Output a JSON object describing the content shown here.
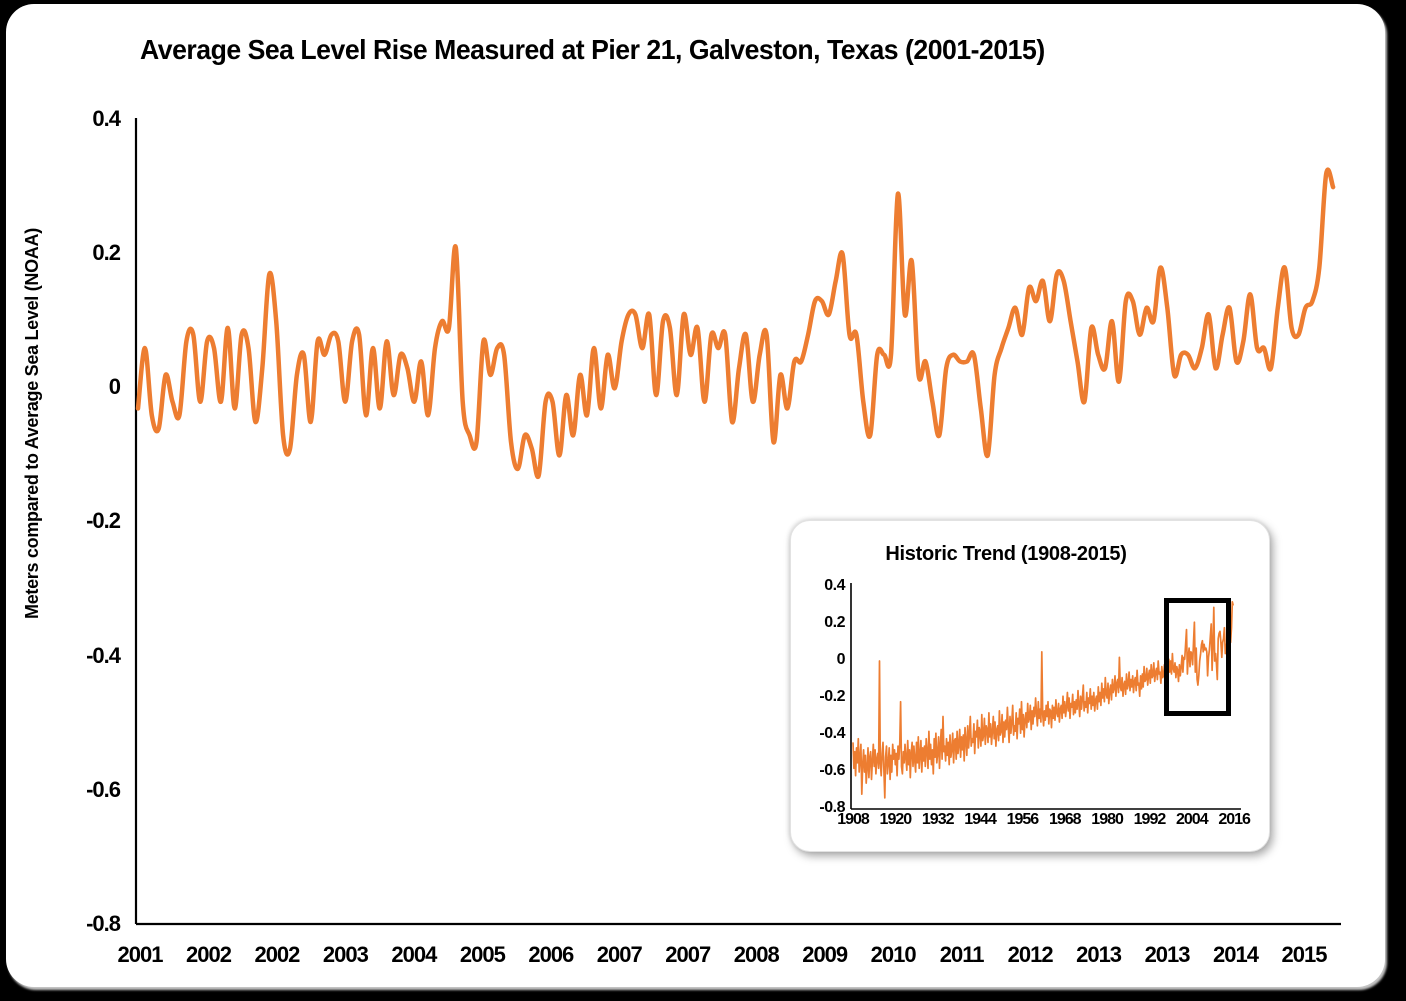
{
  "figure": {
    "title": "Average Sea Level Rise Measured at Pier 21, Galveston, Texas (2001-2015)",
    "y_axis_title": "Meters compared to Average Sea Level (NOAA)"
  },
  "colors": {
    "line": "#ED7D31",
    "axis": "#000000",
    "card_background": "#FFFFFF",
    "frame_background": "#000000",
    "highlight_box": "#000000"
  },
  "chart_data": [
    {
      "id": "main",
      "type": "line",
      "title": "Average Sea Level Rise Measured at Pier 21, Galveston, Texas (2001-2015)",
      "xlabel": "",
      "ylabel": "Meters compared to Average Sea Level (NOAA)",
      "ylim": [
        -0.8,
        0.4
      ],
      "x_unit": "month",
      "x_start": "2001-01",
      "x_end": "2015-06",
      "grid": false,
      "legend": "none",
      "smoothed": true,
      "y_tick_labels": [
        "0.4",
        "0.2",
        "0",
        "-0.2",
        "-0.4",
        "-0.6",
        "-0.8"
      ],
      "x_tick_labels": [
        "2001",
        "2002",
        "2002",
        "2003",
        "2004",
        "2005",
        "2006",
        "2007",
        "2007",
        "2008",
        "2009",
        "2010",
        "2011",
        "2012",
        "2013",
        "2013",
        "2014",
        "2015"
      ],
      "values": [
        -0.03,
        0.06,
        -0.04,
        -0.06,
        0.02,
        -0.02,
        -0.04,
        0.07,
        0.08,
        -0.02,
        0.07,
        0.06,
        -0.02,
        0.09,
        -0.03,
        0.08,
        0.06,
        -0.05,
        0.03,
        0.17,
        0.1,
        -0.07,
        -0.09,
        0.02,
        0.05,
        -0.05,
        0.07,
        0.05,
        0.08,
        0.07,
        -0.02,
        0.07,
        0.08,
        -0.04,
        0.06,
        -0.03,
        0.07,
        -0.01,
        0.05,
        0.03,
        -0.02,
        0.04,
        -0.04,
        0.06,
        0.1,
        0.09,
        0.21,
        -0.02,
        -0.07,
        -0.08,
        0.07,
        0.02,
        0.06,
        0.05,
        -0.08,
        -0.12,
        -0.07,
        -0.09,
        -0.13,
        -0.02,
        -0.02,
        -0.1,
        -0.01,
        -0.07,
        0.02,
        -0.04,
        0.06,
        -0.03,
        0.05,
        0.0,
        0.07,
        0.11,
        0.11,
        0.06,
        0.11,
        -0.01,
        0.1,
        0.09,
        -0.01,
        0.11,
        0.05,
        0.09,
        -0.02,
        0.08,
        0.06,
        0.08,
        -0.05,
        0.03,
        0.08,
        -0.02,
        0.05,
        0.08,
        -0.08,
        0.02,
        -0.03,
        0.04,
        0.04,
        0.08,
        0.13,
        0.13,
        0.11,
        0.16,
        0.2,
        0.08,
        0.08,
        -0.02,
        -0.07,
        0.05,
        0.05,
        0.05,
        0.29,
        0.11,
        0.19,
        0.02,
        0.04,
        -0.02,
        -0.07,
        0.03,
        0.05,
        0.04,
        0.04,
        0.05,
        -0.03,
        -0.1,
        0.02,
        0.06,
        0.09,
        0.12,
        0.08,
        0.15,
        0.13,
        0.16,
        0.1,
        0.17,
        0.16,
        0.1,
        0.04,
        -0.02,
        0.09,
        0.05,
        0.03,
        0.1,
        0.01,
        0.13,
        0.13,
        0.08,
        0.12,
        0.1,
        0.18,
        0.12,
        0.02,
        0.05,
        0.05,
        0.03,
        0.06,
        0.11,
        0.03,
        0.08,
        0.12,
        0.04,
        0.07,
        0.14,
        0.06,
        0.06,
        0.03,
        0.12,
        0.18,
        0.09,
        0.08,
        0.12,
        0.13,
        0.18,
        0.32,
        0.3
      ]
    },
    {
      "id": "inset",
      "type": "line",
      "title": "Historic Trend (1908-2015)",
      "xlabel": "",
      "ylabel": "",
      "ylim": [
        -0.8,
        0.4
      ],
      "x_unit": "quarter",
      "x_start": 1908,
      "x_end": 2015.75,
      "grid": false,
      "legend": "none",
      "smoothed": false,
      "y_tick_labels": [
        "0.4",
        "0.2",
        "0",
        "-0.2",
        "-0.4",
        "-0.6",
        "-0.8"
      ],
      "x_tick_labels": [
        "1908",
        "1920",
        "1932",
        "1944",
        "1956",
        "1968",
        "1980",
        "1992",
        "2004",
        "2016"
      ],
      "highlight_box": {
        "x_range": [
          1996,
          2015
        ],
        "y_range": [
          -0.3,
          0.34
        ]
      },
      "values": [
        -0.44,
        -0.58,
        -0.49,
        -0.62,
        -0.47,
        -0.55,
        -0.42,
        -0.6,
        -0.52,
        -0.45,
        -0.72,
        -0.56,
        -0.48,
        -0.6,
        -0.51,
        -0.66,
        -0.58,
        -0.47,
        -0.63,
        -0.52,
        -0.49,
        -0.64,
        -0.54,
        -0.45,
        -0.57,
        -0.48,
        -0.61,
        -0.53,
        -0.5,
        -0.58,
        0.0,
        -0.55,
        -0.62,
        -0.5,
        -0.44,
        -0.59,
        -0.74,
        -0.52,
        -0.46,
        -0.61,
        -0.55,
        -0.47,
        -0.64,
        -0.51,
        -0.6,
        -0.45,
        -0.53,
        -0.48,
        -0.56,
        -0.5,
        -0.62,
        -0.46,
        -0.53,
        -0.44,
        -0.22,
        -0.57,
        -0.61,
        -0.49,
        -0.55,
        -0.45,
        -0.52,
        -0.59,
        -0.43,
        -0.56,
        -0.48,
        -0.63,
        -0.5,
        -0.44,
        -0.57,
        -0.46,
        -0.54,
        -0.6,
        -0.44,
        -0.55,
        -0.41,
        -0.58,
        -0.51,
        -0.43,
        -0.6,
        -0.47,
        -0.54,
        -0.46,
        -0.57,
        -0.42,
        -0.49,
        -0.58,
        -0.38,
        -0.53,
        -0.45,
        -0.56,
        -0.48,
        -0.61,
        -0.42,
        -0.52,
        -0.39,
        -0.55,
        -0.5,
        -0.41,
        -0.58,
        -0.46,
        -0.37,
        -0.53,
        -0.3,
        -0.49,
        -0.46,
        -0.54,
        -0.42,
        -0.51,
        -0.44,
        -0.56,
        -0.4,
        -0.52,
        -0.48,
        -0.39,
        -0.55,
        -0.43,
        -0.42,
        -0.53,
        -0.38,
        -0.5,
        -0.45,
        -0.37,
        -0.52,
        -0.41,
        -0.48,
        -0.4,
        -0.54,
        -0.36,
        -0.43,
        -0.51,
        -0.35,
        -0.47,
        -0.39,
        -0.3,
        -0.46,
        -0.42,
        -0.44,
        -0.34,
        -0.5,
        -0.38,
        -0.41,
        -0.32,
        -0.47,
        -0.36,
        -0.38,
        -0.46,
        -0.29,
        -0.43,
        -0.4,
        -0.31,
        -0.45,
        -0.35,
        -0.37,
        -0.44,
        -0.28,
        -0.41,
        -0.34,
        -0.45,
        -0.38,
        -0.3,
        -0.42,
        -0.33,
        -0.46,
        -0.37,
        -0.35,
        -0.43,
        -0.27,
        -0.4,
        -0.38,
        -0.29,
        -0.44,
        -0.33,
        -0.41,
        -0.32,
        -0.37,
        -0.25,
        -0.36,
        -0.44,
        -0.3,
        -0.39,
        -0.33,
        -0.24,
        -0.4,
        -0.35,
        -0.38,
        -0.28,
        -0.42,
        -0.31,
        -0.34,
        -0.26,
        -0.39,
        -0.22,
        -0.37,
        -0.29,
        -0.41,
        -0.32,
        -0.28,
        -0.36,
        -0.23,
        -0.33,
        -0.31,
        -0.24,
        -0.37,
        -0.27,
        -0.34,
        -0.25,
        -0.3,
        -0.2,
        -0.28,
        -0.35,
        -0.22,
        -0.31,
        -0.26,
        -0.33,
        0.05,
        -0.29,
        -0.35,
        -0.27,
        -0.32,
        -0.24,
        -0.3,
        -0.22,
        -0.34,
        -0.26,
        -0.27,
        -0.36,
        -0.24,
        -0.31,
        -0.25,
        -0.32,
        -0.21,
        -0.28,
        -0.3,
        -0.23,
        -0.33,
        -0.26,
        -0.24,
        -0.31,
        -0.19,
        -0.28,
        -0.22,
        -0.3,
        -0.25,
        -0.17,
        -0.27,
        -0.2,
        -0.31,
        -0.23,
        -0.25,
        -0.18,
        -0.29,
        -0.22,
        -0.28,
        -0.21,
        -0.26,
        -0.16,
        -0.23,
        -0.3,
        -0.19,
        -0.26,
        -0.2,
        -0.13,
        -0.27,
        -0.22,
        -0.25,
        -0.17,
        -0.28,
        -0.2,
        -0.23,
        -0.15,
        -0.26,
        -0.19,
        -0.24,
        -0.17,
        -0.27,
        -0.21,
        -0.19,
        -0.26,
        -0.14,
        -0.22,
        -0.17,
        -0.24,
        -0.12,
        -0.2,
        -0.15,
        -0.22,
        -0.09,
        -0.18,
        -0.2,
        -0.12,
        -0.23,
        -0.16,
        -0.13,
        -0.21,
        -0.1,
        -0.17,
        -0.15,
        -0.08,
        -0.19,
        -0.12,
        -0.1,
        -0.17,
        0.02,
        -0.14,
        -0.16,
        -0.09,
        -0.19,
        -0.13,
        -0.11,
        -0.18,
        -0.07,
        -0.15,
        -0.13,
        -0.06,
        -0.16,
        -0.1,
        -0.14,
        -0.08,
        -0.17,
        -0.11,
        -0.09,
        -0.16,
        -0.05,
        -0.13,
        -0.12,
        -0.19,
        -0.08,
        -0.15,
        -0.07,
        -0.14,
        -0.03,
        -0.11,
        -0.1,
        -0.04,
        -0.13,
        -0.08,
        -0.05,
        -0.12,
        -0.02,
        -0.09,
        -0.08,
        -0.01,
        -0.11,
        -0.06,
        -0.04,
        -0.1,
        0.0,
        -0.07,
        -0.06,
        -0.12,
        -0.03,
        -0.09,
        -0.08,
        -0.02,
        -0.1,
        -0.05,
        -0.03,
        -0.09,
        0.01,
        -0.06,
        0.0,
        -0.07,
        0.04,
        -0.04,
        -0.06,
        -0.01,
        -0.09,
        -0.03,
        -0.05,
        -0.11,
        -0.02,
        -0.08,
        -0.03,
        0.03,
        -0.06,
        0.02,
        0.01,
        0.09,
        0.17,
        -0.07,
        0.02,
        0.07,
        -0.03,
        0.05,
        0.04,
        -0.02,
        0.1,
        0.21,
        -0.06,
        0.07,
        -0.1,
        -0.13,
        -0.08,
        0.0,
        0.04,
        0.09,
        0.11,
        0.05,
        0.09,
        0.06,
        0.07,
        0.05,
        -0.08,
        0.02,
        0.06,
        0.13,
        0.2,
        -0.05,
        0.08,
        0.29,
        0.0,
        0.04,
        -0.02,
        -0.1,
        0.12,
        0.15,
        0.16,
        0.1,
        0.02,
        0.1,
        0.12,
        0.18,
        0.04,
        0.09,
        0.06,
        0.1,
        0.05,
        0.14,
        0.1,
        0.18,
        0.32,
        0.3
      ]
    }
  ]
}
